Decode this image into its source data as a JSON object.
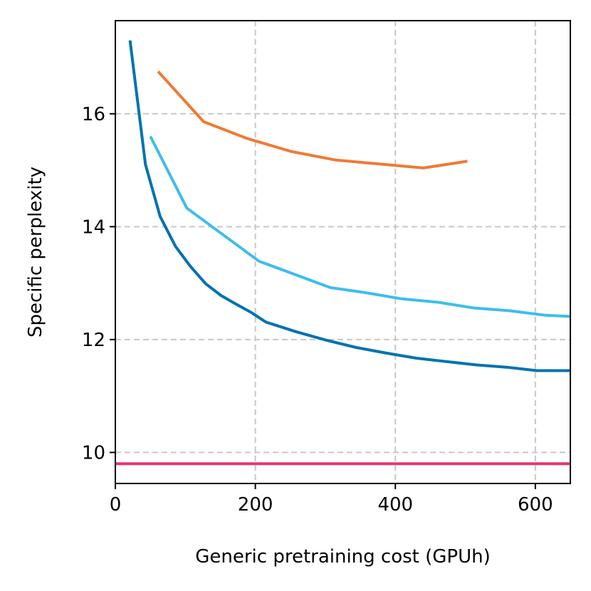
{
  "chart_data": {
    "type": "line",
    "title": "",
    "xlabel": "Generic pretraining cost (GPUh)",
    "ylabel": "Specific perplexity",
    "xlim": [
      0,
      650
    ],
    "ylim": [
      9.45,
      17.65
    ],
    "xticks": [
      0,
      200,
      400,
      600
    ],
    "yticks": [
      10,
      12,
      14,
      16
    ],
    "xtick_labels": [
      "0",
      "200",
      "400",
      "600"
    ],
    "ytick_labels": [
      "10",
      "12",
      "14",
      "16"
    ],
    "grid": true,
    "series": [
      {
        "name": "series-dark-blue",
        "color": "#0072b2",
        "x": [
          21,
          43,
          64,
          86,
          107,
          129,
          151,
          172,
          194,
          215,
          258,
          301,
          344,
          387,
          430,
          473,
          516,
          559,
          602,
          645,
          650
        ],
        "y": [
          17.3,
          15.1,
          14.18,
          13.65,
          13.3,
          12.99,
          12.78,
          12.63,
          12.48,
          12.31,
          12.14,
          11.99,
          11.86,
          11.76,
          11.67,
          11.61,
          11.55,
          11.51,
          11.45,
          11.45,
          11.45
        ]
      },
      {
        "name": "series-light-blue",
        "color": "#3dbeea",
        "x": [
          50,
          102,
          205,
          307,
          358,
          410,
          461,
          512,
          563,
          615,
          650
        ],
        "y": [
          15.6,
          14.33,
          13.39,
          12.92,
          12.83,
          12.72,
          12.66,
          12.56,
          12.51,
          12.43,
          12.41
        ]
      },
      {
        "name": "series-orange",
        "color": "#ed7b35",
        "x": [
          61,
          126,
          189,
          252,
          315,
          377,
          440,
          503
        ],
        "y": [
          16.75,
          15.86,
          15.56,
          15.33,
          15.18,
          15.11,
          15.04,
          15.16
        ]
      },
      {
        "name": "series-pink-baseline",
        "color": "#e8336e",
        "x": [
          0,
          650
        ],
        "y": [
          9.8,
          9.8
        ]
      }
    ]
  }
}
